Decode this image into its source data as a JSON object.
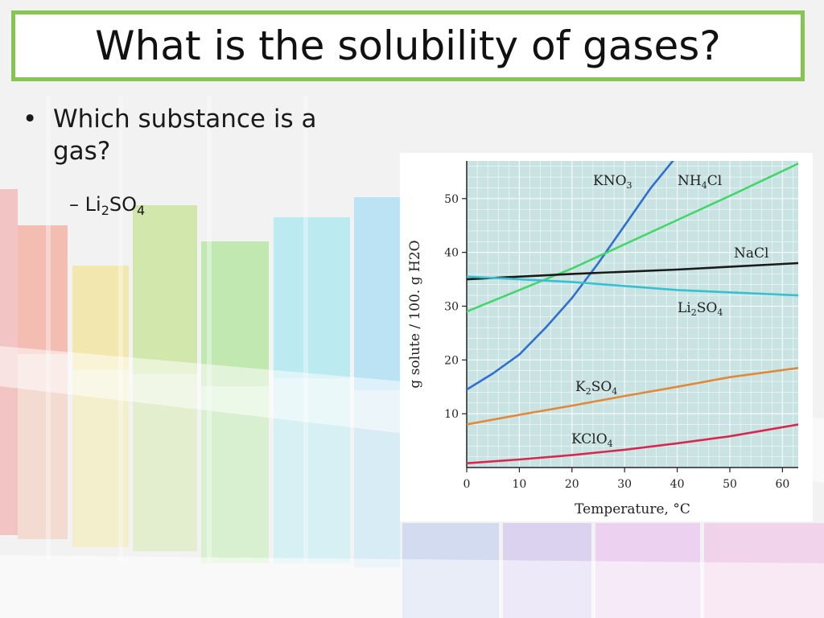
{
  "slide": {
    "title": "What is the solubility of gases?",
    "bullet_marker": "•",
    "bullet_text": "Which substance is a gas?",
    "sub_dash": "–",
    "answer": {
      "t1": "Li",
      "s1": "2",
      "t2": "SO",
      "s2": "4"
    }
  },
  "colors": {
    "title_border": "#86c552",
    "grid_background": "#c9e2e2",
    "KNO3": "#2f6fd0",
    "NH4Cl": "#43d66b",
    "NaCl": "#1a1a1a",
    "Li2SO4": "#35c1d2",
    "K2SO4": "#e0893a",
    "KClO4": "#d9284f"
  },
  "chart_data": {
    "type": "line",
    "title": "",
    "xlabel": "Temperature, °C",
    "ylabel": "g solute / 100. g H2O",
    "xlim": [
      0,
      63
    ],
    "ylim": [
      0,
      57
    ],
    "xticks": [
      0,
      10,
      20,
      30,
      40,
      50,
      60
    ],
    "yticks": [
      10,
      20,
      30,
      40,
      50
    ],
    "grid": true,
    "series": [
      {
        "name": "KNO3",
        "label_parts": [
          [
            "KNO",
            ""
          ],
          [
            "3",
            "sub"
          ]
        ],
        "x": [
          0,
          5,
          10,
          15,
          20,
          25,
          30,
          35,
          40
        ],
        "y": [
          14.5,
          17.5,
          21,
          26,
          31.5,
          38,
          45,
          52,
          58
        ]
      },
      {
        "name": "NH4Cl",
        "label_parts": [
          [
            "NH",
            ""
          ],
          [
            "4",
            "sub"
          ],
          [
            "Cl",
            ""
          ]
        ],
        "x": [
          0,
          10,
          20,
          30,
          40,
          50,
          63
        ],
        "y": [
          29,
          33,
          37,
          41.5,
          46,
          50.5,
          56.5
        ]
      },
      {
        "name": "NaCl",
        "label_parts": [
          [
            "NaCl",
            ""
          ]
        ],
        "x": [
          0,
          20,
          40,
          63
        ],
        "y": [
          35,
          36,
          36.8,
          38
        ]
      },
      {
        "name": "Li2SO4",
        "label_parts": [
          [
            "Li",
            ""
          ],
          [
            "2",
            "sub"
          ],
          [
            "SO",
            ""
          ],
          [
            "4",
            "sub"
          ]
        ],
        "x": [
          0,
          20,
          40,
          63
        ],
        "y": [
          35.5,
          34.5,
          33,
          32
        ]
      },
      {
        "name": "K2SO4",
        "label_parts": [
          [
            "K",
            ""
          ],
          [
            "2",
            "sub"
          ],
          [
            "SO",
            ""
          ],
          [
            "4",
            "sub"
          ]
        ],
        "x": [
          0,
          10,
          20,
          30,
          40,
          50,
          63
        ],
        "y": [
          8,
          9.8,
          11.5,
          13.3,
          15,
          16.8,
          18.5
        ]
      },
      {
        "name": "KClO4",
        "label_parts": [
          [
            "KClO",
            ""
          ],
          [
            "4",
            "sub"
          ]
        ],
        "x": [
          0,
          10,
          20,
          30,
          40,
          50,
          63
        ],
        "y": [
          0.8,
          1.5,
          2.3,
          3.3,
          4.5,
          5.8,
          8
        ]
      }
    ]
  }
}
